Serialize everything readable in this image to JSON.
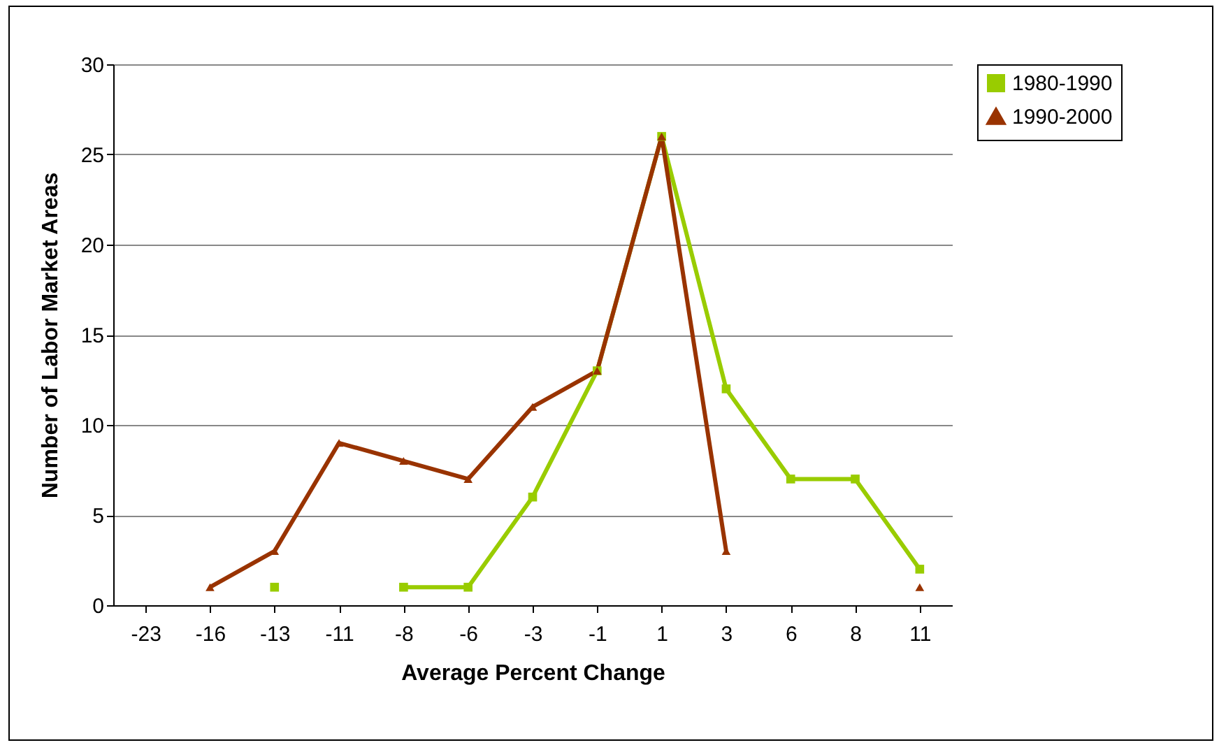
{
  "chart_data": {
    "type": "line",
    "xlabel": "Average Percent Change",
    "ylabel": "Number of Labor Market Areas",
    "categories": [
      "-23",
      "-16",
      "-13",
      "-11",
      "-8",
      "-6",
      "-3",
      "-1",
      "1",
      "3",
      "6",
      "8",
      "11"
    ],
    "series": [
      {
        "name": "1980-1990",
        "color": "#99cc00",
        "marker": "square",
        "values": [
          null,
          null,
          1,
          null,
          1,
          1,
          6,
          13,
          26,
          12,
          7,
          7,
          2
        ]
      },
      {
        "name": "1990-2000",
        "color": "#993300",
        "marker": "triangle",
        "values": [
          null,
          1,
          3,
          9,
          8,
          7,
          11,
          13,
          26,
          3,
          null,
          null,
          1
        ]
      }
    ],
    "ylim": [
      0,
      30
    ],
    "yticks": [
      0,
      5,
      10,
      15,
      20,
      25,
      30
    ],
    "grid": "y",
    "legend": "right",
    "line_style": "solid"
  }
}
